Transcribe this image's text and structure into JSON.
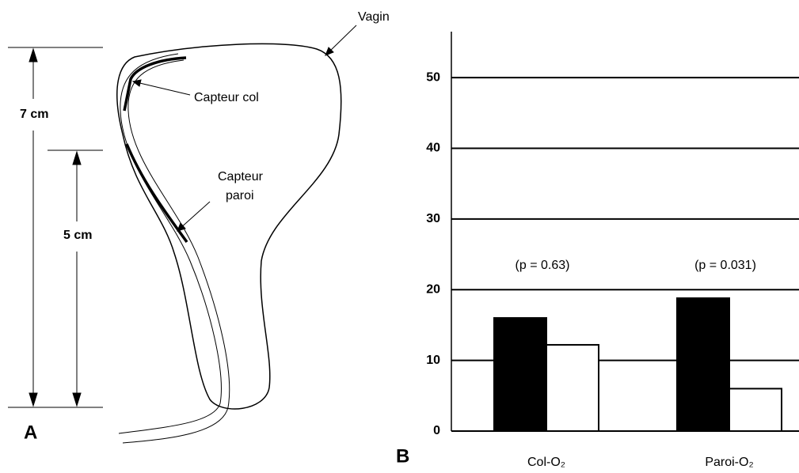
{
  "diagram": {
    "vagin": "Vagin",
    "capteur_col": "Capteur col",
    "capteur_paroi": [
      "Capteur",
      "paroi"
    ],
    "dim_7": "7 cm",
    "dim_5": "5 cm",
    "panel": "A"
  },
  "chart_data": {
    "type": "bar",
    "panel": "B",
    "categories": [
      "Col-O₂",
      "Paroi-O₂"
    ],
    "series": [
      {
        "color": "#000000",
        "values": [
          16,
          18.8
        ]
      },
      {
        "color": "#ffffff",
        "values": [
          12.2,
          6
        ]
      }
    ],
    "annotations": [
      "(p = 0.63)",
      "(p = 0.031)"
    ],
    "ylim": [
      0,
      56.5
    ],
    "yticks": [
      0,
      10,
      20,
      30,
      40,
      50
    ],
    "grid": true
  }
}
